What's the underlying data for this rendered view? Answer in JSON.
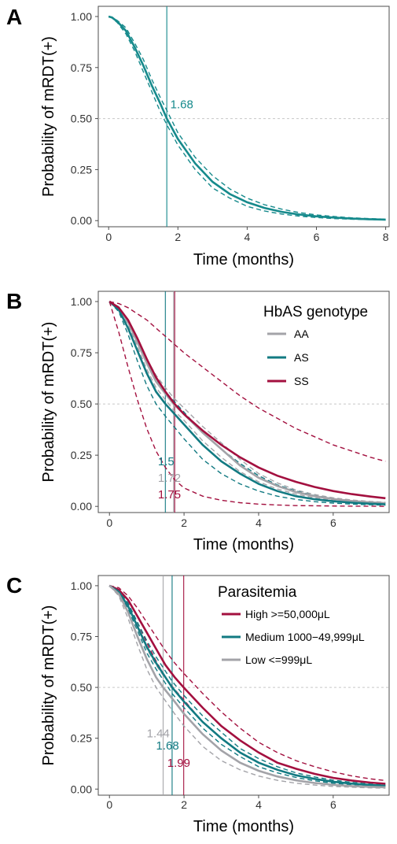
{
  "colors": {
    "AA": "#a3a3a8",
    "AS": "#127a82",
    "SS": "#a3103f",
    "A": "#168a8c",
    "High": "#a3103f",
    "Medium": "#127a82",
    "Low": "#a3a3a8",
    "grid_ref": "#c8c8c8",
    "frame": "#4d4d4d"
  },
  "chart_data": [
    {
      "panel": "A",
      "type": "line",
      "title": "",
      "xlabel": "Time (months)",
      "ylabel": "Probability of mRDT(+)",
      "xlim": [
        -0.3,
        8.1
      ],
      "ylim": [
        -0.03,
        1.05
      ],
      "xticks": [
        0,
        2,
        4,
        6,
        8
      ],
      "xtick_labels": [
        "0",
        "2",
        "4",
        "6",
        "8"
      ],
      "yticks": [
        0,
        0.25,
        0.5,
        0.75,
        1.0
      ],
      "ytick_labels": [
        "0.00",
        "0.25",
        "0.50",
        "0.75",
        "1.00"
      ],
      "reference_line_y": 0.5,
      "legend": null,
      "series": [
        {
          "color": "A",
          "x": [
            0,
            0.1,
            0.25,
            0.5,
            0.75,
            1.0,
            1.25,
            1.5,
            1.68,
            2.0,
            2.5,
            3.0,
            3.5,
            4.0,
            4.5,
            5.0,
            5.5,
            6.0,
            6.5,
            7.0,
            7.5,
            8.0
          ],
          "y": [
            1.0,
            0.995,
            0.975,
            0.93,
            0.85,
            0.76,
            0.66,
            0.57,
            0.5,
            0.4,
            0.28,
            0.19,
            0.13,
            0.09,
            0.062,
            0.043,
            0.03,
            0.021,
            0.015,
            0.01,
            0.007,
            0.005
          ],
          "lower": [
            1.0,
            0.993,
            0.97,
            0.915,
            0.83,
            0.73,
            0.63,
            0.53,
            0.47,
            0.37,
            0.25,
            0.16,
            0.11,
            0.07,
            0.047,
            0.032,
            0.022,
            0.015,
            0.01,
            0.007,
            0.005,
            0.003
          ],
          "upper": [
            1.0,
            0.997,
            0.98,
            0.945,
            0.87,
            0.79,
            0.69,
            0.6,
            0.54,
            0.43,
            0.31,
            0.22,
            0.155,
            0.11,
            0.078,
            0.056,
            0.04,
            0.028,
            0.02,
            0.014,
            0.01,
            0.007
          ],
          "median": 1.68,
          "median_label": "1.68",
          "median_label_pos": [
            1.78,
            0.55
          ]
        }
      ]
    },
    {
      "panel": "B",
      "type": "line",
      "title": "",
      "xlabel": "Time (months)",
      "ylabel": "Probability of mRDT(+)",
      "xlim": [
        -0.3,
        7.5
      ],
      "ylim": [
        -0.03,
        1.05
      ],
      "xticks": [
        0,
        2,
        4,
        6
      ],
      "xtick_labels": [
        "0",
        "2",
        "4",
        "6"
      ],
      "yticks": [
        0,
        0.25,
        0.5,
        0.75,
        1.0
      ],
      "ytick_labels": [
        "0.00",
        "0.25",
        "0.50",
        "0.75",
        "1.00"
      ],
      "reference_line_y": 0.5,
      "legend": {
        "title": "HbAS genotype",
        "placement": "top-right",
        "entries": [
          "AA",
          "AS",
          "SS"
        ]
      },
      "series": [
        {
          "name": "AA",
          "color": "AA",
          "x": [
            0,
            0.25,
            0.5,
            0.75,
            1.0,
            1.25,
            1.5,
            1.72,
            2.0,
            2.5,
            3.0,
            3.5,
            4.0,
            4.5,
            5.0,
            5.5,
            6.0,
            6.5,
            7.0,
            7.4
          ],
          "y": [
            1.0,
            0.97,
            0.9,
            0.8,
            0.7,
            0.61,
            0.55,
            0.5,
            0.45,
            0.36,
            0.28,
            0.2,
            0.14,
            0.1,
            0.07,
            0.05,
            0.036,
            0.026,
            0.02,
            0.016
          ],
          "lower": [
            1.0,
            0.965,
            0.89,
            0.78,
            0.67,
            0.58,
            0.52,
            0.47,
            0.42,
            0.32,
            0.24,
            0.17,
            0.12,
            0.085,
            0.06,
            0.042,
            0.03,
            0.022,
            0.016,
            0.012
          ],
          "upper": [
            1.0,
            0.975,
            0.91,
            0.82,
            0.72,
            0.64,
            0.58,
            0.53,
            0.48,
            0.39,
            0.31,
            0.23,
            0.16,
            0.115,
            0.08,
            0.058,
            0.042,
            0.031,
            0.024,
            0.02
          ],
          "median": 1.72,
          "median_label": "1.72",
          "median_label_pos": [
            1.3,
            0.12
          ]
        },
        {
          "name": "AS",
          "color": "AS",
          "x": [
            0,
            0.25,
            0.5,
            0.75,
            1.0,
            1.25,
            1.5,
            2.0,
            2.5,
            3.0,
            3.5,
            4.0,
            4.5,
            5.0,
            5.5,
            6.0,
            6.5,
            7.0,
            7.4
          ],
          "y": [
            1.0,
            0.96,
            0.87,
            0.76,
            0.65,
            0.56,
            0.5,
            0.4,
            0.3,
            0.22,
            0.16,
            0.11,
            0.075,
            0.05,
            0.035,
            0.025,
            0.018,
            0.013,
            0.01
          ],
          "lower": [
            1.0,
            0.95,
            0.84,
            0.71,
            0.59,
            0.5,
            0.44,
            0.33,
            0.23,
            0.16,
            0.11,
            0.075,
            0.05,
            0.034,
            0.023,
            0.016,
            0.011,
            0.008,
            0.006
          ],
          "upper": [
            1.0,
            0.97,
            0.9,
            0.8,
            0.71,
            0.62,
            0.56,
            0.46,
            0.36,
            0.28,
            0.21,
            0.15,
            0.105,
            0.075,
            0.053,
            0.038,
            0.028,
            0.021,
            0.017
          ],
          "median": 1.5,
          "median_label": "1.5",
          "median_label_pos": [
            1.3,
            0.2
          ]
        },
        {
          "name": "SS",
          "color": "SS",
          "x": [
            0,
            0.25,
            0.5,
            0.75,
            1.0,
            1.25,
            1.5,
            1.75,
            2.0,
            2.5,
            3.0,
            3.5,
            4.0,
            4.5,
            5.0,
            5.5,
            6.0,
            6.5,
            7.0,
            7.4
          ],
          "y": [
            1.0,
            0.97,
            0.91,
            0.82,
            0.72,
            0.63,
            0.56,
            0.5,
            0.45,
            0.37,
            0.3,
            0.24,
            0.19,
            0.15,
            0.12,
            0.095,
            0.075,
            0.06,
            0.048,
            0.04
          ],
          "lower": [
            1.0,
            0.85,
            0.68,
            0.52,
            0.38,
            0.27,
            0.19,
            0.13,
            0.09,
            0.05,
            0.03,
            0.018,
            0.011,
            0.007,
            0.004,
            0.003,
            0.002,
            0.001,
            0.001,
            0.0
          ],
          "upper": [
            1.0,
            0.99,
            0.97,
            0.94,
            0.91,
            0.87,
            0.83,
            0.79,
            0.75,
            0.68,
            0.61,
            0.54,
            0.48,
            0.43,
            0.38,
            0.34,
            0.3,
            0.27,
            0.24,
            0.22
          ],
          "median": 1.75,
          "median_label": "1.75",
          "median_label_pos": [
            1.3,
            0.04
          ]
        }
      ]
    },
    {
      "panel": "C",
      "type": "line",
      "title": "",
      "xlabel": "Time (months)",
      "ylabel": "Probability of mRDT(+)",
      "xlim": [
        -0.3,
        7.5
      ],
      "ylim": [
        -0.03,
        1.05
      ],
      "xticks": [
        0,
        2,
        4,
        6
      ],
      "xtick_labels": [
        "0",
        "2",
        "4",
        "6"
      ],
      "yticks": [
        0,
        0.25,
        0.5,
        0.75,
        1.0
      ],
      "ytick_labels": [
        "0.00",
        "0.25",
        "0.50",
        "0.75",
        "1.00"
      ],
      "reference_line_y": 0.5,
      "legend": {
        "title": "Parasitemia",
        "placement": "top-right",
        "entries": [
          "High >=50,000μL",
          "Medium 1000−49,999μL",
          "Low <=999μL"
        ]
      },
      "series": [
        {
          "name": "High >=50,000μL",
          "color": "High",
          "x": [
            0,
            0.25,
            0.5,
            0.75,
            1.0,
            1.25,
            1.5,
            1.75,
            1.99,
            2.5,
            3.0,
            3.5,
            4.0,
            4.5,
            5.0,
            5.5,
            6.0,
            6.5,
            7.0,
            7.4
          ],
          "y": [
            1.0,
            0.98,
            0.93,
            0.85,
            0.77,
            0.69,
            0.61,
            0.55,
            0.5,
            0.4,
            0.31,
            0.24,
            0.18,
            0.13,
            0.1,
            0.075,
            0.055,
            0.042,
            0.032,
            0.026
          ],
          "lower": [
            1.0,
            0.975,
            0.91,
            0.82,
            0.72,
            0.63,
            0.55,
            0.49,
            0.44,
            0.33,
            0.25,
            0.18,
            0.13,
            0.095,
            0.07,
            0.05,
            0.036,
            0.026,
            0.019,
            0.015
          ],
          "upper": [
            1.0,
            0.99,
            0.95,
            0.89,
            0.82,
            0.75,
            0.68,
            0.62,
            0.57,
            0.47,
            0.38,
            0.3,
            0.23,
            0.18,
            0.14,
            0.11,
            0.085,
            0.065,
            0.05,
            0.042
          ],
          "median": 1.99,
          "median_label": "1.99",
          "median_label_pos": [
            1.55,
            0.11
          ]
        },
        {
          "name": "Medium 1000−49,999μL",
          "color": "Medium",
          "x": [
            0,
            0.25,
            0.5,
            0.75,
            1.0,
            1.25,
            1.5,
            1.68,
            2.0,
            2.5,
            3.0,
            3.5,
            4.0,
            4.5,
            5.0,
            5.5,
            6.0,
            6.5,
            7.0,
            7.4
          ],
          "y": [
            1.0,
            0.97,
            0.9,
            0.8,
            0.7,
            0.62,
            0.55,
            0.5,
            0.43,
            0.33,
            0.25,
            0.18,
            0.13,
            0.095,
            0.068,
            0.05,
            0.036,
            0.027,
            0.02,
            0.016
          ],
          "lower": [
            1.0,
            0.965,
            0.885,
            0.78,
            0.67,
            0.59,
            0.52,
            0.47,
            0.4,
            0.3,
            0.22,
            0.16,
            0.11,
            0.08,
            0.057,
            0.041,
            0.029,
            0.021,
            0.015,
            0.012
          ],
          "upper": [
            1.0,
            0.975,
            0.915,
            0.82,
            0.73,
            0.65,
            0.58,
            0.53,
            0.46,
            0.36,
            0.28,
            0.2,
            0.15,
            0.11,
            0.08,
            0.06,
            0.044,
            0.033,
            0.025,
            0.02
          ],
          "median": 1.68,
          "median_label": "1.68",
          "median_label_pos": [
            1.25,
            0.195
          ]
        },
        {
          "name": "Low <=999μL",
          "color": "Low",
          "x": [
            0,
            0.25,
            0.5,
            0.75,
            1.0,
            1.25,
            1.44,
            1.75,
            2.0,
            2.5,
            3.0,
            3.5,
            4.0,
            4.5,
            5.0,
            5.5,
            6.0,
            6.5,
            7.0,
            7.4
          ],
          "y": [
            1.0,
            0.96,
            0.87,
            0.75,
            0.64,
            0.55,
            0.5,
            0.43,
            0.37,
            0.27,
            0.19,
            0.13,
            0.09,
            0.062,
            0.043,
            0.03,
            0.021,
            0.015,
            0.011,
            0.009
          ],
          "lower": [
            1.0,
            0.95,
            0.84,
            0.71,
            0.59,
            0.5,
            0.45,
            0.37,
            0.31,
            0.21,
            0.14,
            0.095,
            0.064,
            0.043,
            0.029,
            0.02,
            0.013,
            0.009,
            0.006,
            0.005
          ],
          "upper": [
            1.0,
            0.97,
            0.9,
            0.79,
            0.69,
            0.61,
            0.56,
            0.49,
            0.43,
            0.33,
            0.25,
            0.18,
            0.13,
            0.095,
            0.07,
            0.051,
            0.038,
            0.028,
            0.021,
            0.017
          ],
          "median": 1.44,
          "median_label": "1.44",
          "median_label_pos": [
            1.0,
            0.255
          ]
        }
      ]
    }
  ],
  "panels": {
    "A": {
      "letter": "A"
    },
    "B": {
      "letter": "B"
    },
    "C": {
      "letter": "C"
    }
  }
}
